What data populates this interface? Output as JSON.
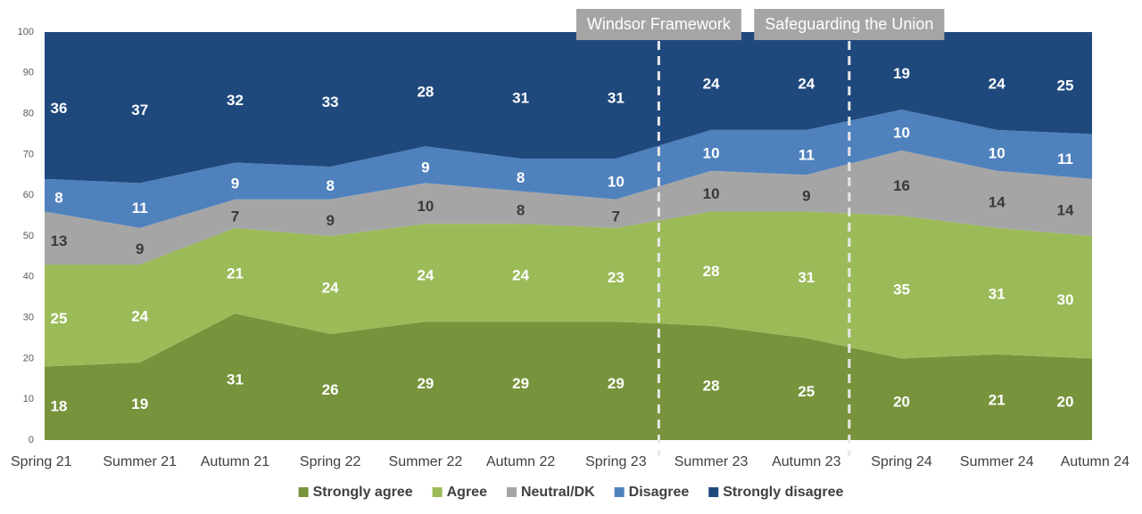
{
  "chart_data": {
    "type": "stacked_area",
    "categories": [
      "Spring 21",
      "Summer 21",
      "Autumn 21",
      "Spring 22",
      "Summer 22",
      "Autumn 22",
      "Spring 23",
      "Summer 23",
      "Autumn 23",
      "Spring 24",
      "Summer 24",
      "Autumn 24"
    ],
    "series": [
      {
        "name": "Strongly agree",
        "color": "#77933c",
        "label_color": "#ffffff",
        "values": [
          18,
          19,
          31,
          26,
          29,
          29,
          29,
          28,
          25,
          20,
          21,
          20
        ]
      },
      {
        "name": "Agree",
        "color": "#9bbb59",
        "label_color": "#ffffff",
        "values": [
          25,
          24,
          21,
          24,
          24,
          24,
          23,
          28,
          31,
          35,
          31,
          30
        ]
      },
      {
        "name": "Neutral/DK",
        "color": "#a5a5a5",
        "label_color": "#3a3a3a",
        "values": [
          13,
          9,
          7,
          9,
          10,
          8,
          7,
          10,
          9,
          16,
          14,
          14
        ]
      },
      {
        "name": "Disagree",
        "color": "#4f81bd",
        "label_color": "#ffffff",
        "values": [
          8,
          11,
          9,
          8,
          9,
          8,
          10,
          10,
          11,
          10,
          10,
          11
        ]
      },
      {
        "name": "Strongly disagree",
        "color": "#1f497d",
        "label_color": "#ffffff",
        "values": [
          36,
          37,
          32,
          33,
          28,
          31,
          31,
          24,
          24,
          19,
          24,
          25
        ]
      }
    ],
    "ylim": [
      0,
      100
    ],
    "yticks": [
      0,
      10,
      20,
      30,
      40,
      50,
      60,
      70,
      80,
      90,
      100
    ],
    "annotations": [
      "Windsor Framework",
      "Safeguarding the Union"
    ],
    "legend": "bottom"
  }
}
